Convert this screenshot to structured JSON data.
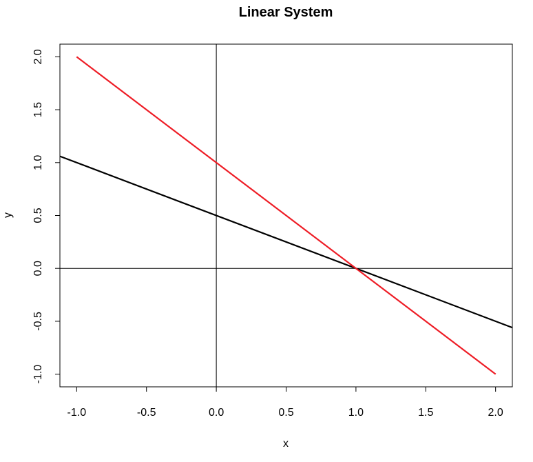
{
  "chart_data": {
    "type": "line",
    "title": "Linear System",
    "xlabel": "x",
    "ylabel": "y",
    "xlim": [
      -1.12,
      2.12
    ],
    "ylim": [
      -1.12,
      2.12
    ],
    "x_ticks": [
      "-1.0",
      "-0.5",
      "0.0",
      "0.5",
      "1.0",
      "1.5",
      "2.0"
    ],
    "y_ticks": [
      "-1.0",
      "-0.5",
      "0.0",
      "0.5",
      "1.0",
      "1.5",
      "2.0"
    ],
    "reference_lines": [
      {
        "orientation": "vertical",
        "x": 0
      },
      {
        "orientation": "horizontal",
        "y": 0
      }
    ],
    "series": [
      {
        "color": "#000000",
        "x": [
          -1.12,
          2.12
        ],
        "y": [
          1.06,
          -0.56
        ]
      },
      {
        "color": "#ee1c25",
        "x": [
          -1.0,
          2.0
        ],
        "y": [
          2.0,
          -1.0
        ]
      }
    ],
    "grid": false,
    "legend": "none"
  }
}
